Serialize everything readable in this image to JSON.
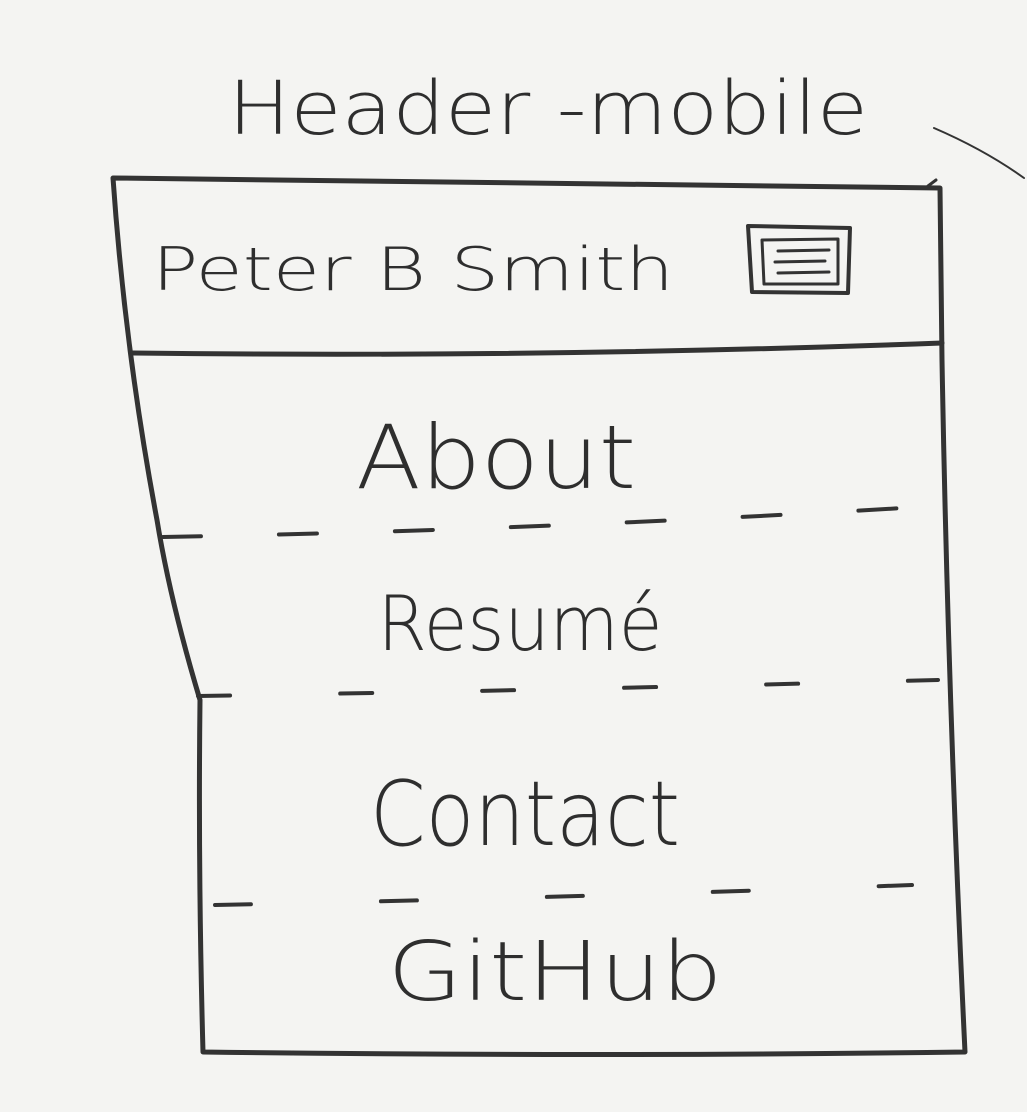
{
  "sketch": {
    "title": "Header -mobile",
    "header": {
      "brand": "Peter B Smith",
      "menu_icon": "hamburger-menu-icon"
    },
    "nav": {
      "items": [
        {
          "label": "About"
        },
        {
          "label": "Resumé"
        },
        {
          "label": "Contact"
        },
        {
          "label": "GitHub"
        }
      ]
    }
  },
  "colors": {
    "paper": "#f4f4f2",
    "ink": "#333333"
  }
}
